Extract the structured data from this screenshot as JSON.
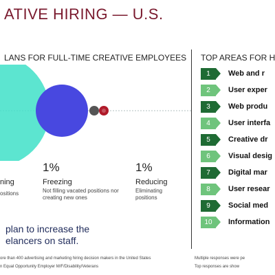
{
  "title": "ATIVE HIRING — U.S.",
  "left_subtitle": "LANS FOR FULL-TIME CREATIVE EMPLOYEES",
  "right_subtitle": "TOP AREAS FOR H",
  "stats": [
    {
      "percent": "",
      "label": "ning",
      "desc": "ositions"
    },
    {
      "percent": "1%",
      "label": "Freezing",
      "desc": "Not filling vacated positions nor creating new ones"
    },
    {
      "percent": "1%",
      "label": "Reducing",
      "desc": "Eliminating positions"
    }
  ],
  "callout_line1": "plan to increase the",
  "callout_line2": "elancers on staff.",
  "footnote_left": "ore than 400 advertising and marketing hiring decision makers in the United States",
  "footnote_left2": "n Equal Opportunity Employer M/F/Disability/Veterans",
  "footnote_right": "Multiple responses were pe",
  "footnote_right2": "Top responses are show",
  "ranks": [
    {
      "num": "1",
      "label": "Web and r",
      "tone": "dark"
    },
    {
      "num": "2",
      "label": "User exper",
      "tone": "light"
    },
    {
      "num": "3",
      "label": "Web produ",
      "tone": "dark"
    },
    {
      "num": "4",
      "label": "User interfa",
      "tone": "light"
    },
    {
      "num": "5",
      "label": "Creative dr",
      "tone": "dark"
    },
    {
      "num": "6",
      "label": "Visual desig",
      "tone": "light"
    },
    {
      "num": "7",
      "label": "Digital mar",
      "tone": "dark"
    },
    {
      "num": "8",
      "label": "User resear",
      "tone": "light"
    },
    {
      "num": "9",
      "label": "Social med",
      "tone": "dark"
    },
    {
      "num": "10",
      "label": "Information",
      "tone": "light"
    }
  ],
  "colors": {
    "title": "#7a1a2e",
    "bubble_large": "#3fe0c8",
    "bubble_blue": "#4848e0",
    "bubble_gray": "#555555",
    "bubble_red": "#b01a2a",
    "rank_dark": "#1f6b34",
    "rank_light": "#6fc47c",
    "callout": "#1e2a5a"
  }
}
